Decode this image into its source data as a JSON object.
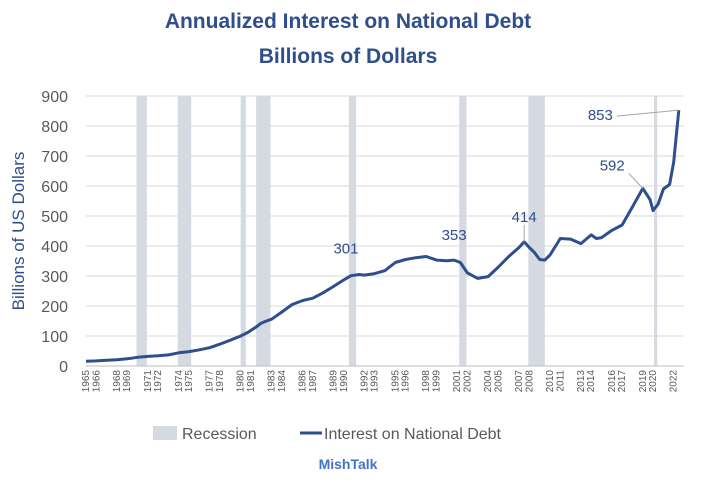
{
  "chart_data": {
    "type": "line",
    "title": "Annualized Interest on National Debt",
    "subtitle": "Billions of Dollars",
    "ylabel": "Billions of US Dollars",
    "xlabel": "",
    "ylim": [
      0,
      900
    ],
    "yticks": [
      0,
      100,
      200,
      300,
      400,
      500,
      600,
      700,
      800,
      900
    ],
    "xticks": [
      "1965",
      "1966",
      "1968",
      "1969",
      "1971",
      "1972",
      "1974",
      "1975",
      "1977",
      "1978",
      "1980",
      "1981",
      "1983",
      "1984",
      "1986",
      "1987",
      "1989",
      "1990",
      "1992",
      "1993",
      "1995",
      "1996",
      "1998",
      "1999",
      "2001",
      "2002",
      "2004",
      "2005",
      "2007",
      "2008",
      "2010",
      "2011",
      "2013",
      "2014",
      "2016",
      "2017",
      "2019",
      "2020",
      "2022"
    ],
    "grid": "horizontal",
    "legend_position": "bottom",
    "series": [
      {
        "name": "Interest on National Debt",
        "color": "#2f4e8c",
        "points": [
          [
            "1965.0",
            16
          ],
          [
            "1966.0",
            17
          ],
          [
            "1967.0",
            19
          ],
          [
            "1968.0",
            21
          ],
          [
            "1969.0",
            24
          ],
          [
            "1970.0",
            29
          ],
          [
            "1971.0",
            32
          ],
          [
            "1972.0",
            34
          ],
          [
            "1973.0",
            37
          ],
          [
            "1974.0",
            44
          ],
          [
            "1975.0",
            48
          ],
          [
            "1976.0",
            54
          ],
          [
            "1977.0",
            61
          ],
          [
            "1978.0",
            73
          ],
          [
            "1979.0",
            86
          ],
          [
            "1980.0",
            100
          ],
          [
            "1980.7",
            112
          ],
          [
            "1981.5",
            130
          ],
          [
            "1982.0",
            143
          ],
          [
            "1982.5",
            150
          ],
          [
            "1983.0",
            156
          ],
          [
            "1984.0",
            180
          ],
          [
            "1985.0",
            205
          ],
          [
            "1986.0",
            218
          ],
          [
            "1987.0",
            226
          ],
          [
            "1988.0",
            244
          ],
          [
            "1989.0",
            265
          ],
          [
            "1990.0",
            287
          ],
          [
            "1990.7",
            301
          ],
          [
            "1991.5",
            305
          ],
          [
            "1992.0",
            303
          ],
          [
            "1993.0",
            308
          ],
          [
            "1994.0",
            318
          ],
          [
            "1995.0",
            345
          ],
          [
            "1996.0",
            355
          ],
          [
            "1997.0",
            361
          ],
          [
            "1998.0",
            365
          ],
          [
            "1999.0",
            353
          ],
          [
            "2000.0",
            351
          ],
          [
            "2000.7",
            353
          ],
          [
            "2001.3",
            345
          ],
          [
            "2002.0",
            310
          ],
          [
            "2003.0",
            292
          ],
          [
            "2004.0",
            298
          ],
          [
            "2005.0",
            330
          ],
          [
            "2006.0",
            365
          ],
          [
            "2007.0",
            395
          ],
          [
            "2007.5",
            414
          ],
          [
            "2008.0",
            395
          ],
          [
            "2008.5",
            378
          ],
          [
            "2009.0",
            355
          ],
          [
            "2009.5",
            353
          ],
          [
            "2010.0",
            370
          ],
          [
            "2011.0",
            425
          ],
          [
            "2012.0",
            423
          ],
          [
            "2013.0",
            408
          ],
          [
            "2014.0",
            437
          ],
          [
            "2014.5",
            425
          ],
          [
            "2015.0",
            428
          ],
          [
            "2016.0",
            452
          ],
          [
            "2017.0",
            470
          ],
          [
            "2018.0",
            530
          ],
          [
            "2019.0",
            592
          ],
          [
            "2019.7",
            555
          ],
          [
            "2020.0",
            518
          ],
          [
            "2020.5",
            540
          ],
          [
            "2021.0",
            590
          ],
          [
            "2021.6",
            605
          ],
          [
            "2022.0",
            680
          ],
          [
            "2022.5",
            853
          ]
        ]
      }
    ],
    "recessions": [
      {
        "name": "Recession",
        "color": "#d4d9e2",
        "start": 1969.9,
        "end": 1970.9
      },
      {
        "name": "Recession",
        "color": "#d4d9e2",
        "start": 1973.9,
        "end": 1975.2
      },
      {
        "name": "Recession",
        "color": "#d4d9e2",
        "start": 1980.0,
        "end": 1980.5
      },
      {
        "name": "Recession",
        "color": "#d4d9e2",
        "start": 1981.5,
        "end": 1982.9
      },
      {
        "name": "Recession",
        "color": "#d4d9e2",
        "start": 1990.5,
        "end": 1991.2
      },
      {
        "name": "Recession",
        "color": "#d4d9e2",
        "start": 2001.2,
        "end": 2001.9
      },
      {
        "name": "Recession",
        "color": "#d4d9e2",
        "start": 2007.9,
        "end": 2009.5
      },
      {
        "name": "Recession",
        "color": "#d4d9e2",
        "start": 2020.1,
        "end": 2020.4
      }
    ],
    "annotations": [
      {
        "label": "301",
        "x": 1990.7,
        "y": 301
      },
      {
        "label": "353",
        "x": 2000.7,
        "y": 353
      },
      {
        "label": "414",
        "x": 2007.5,
        "y": 414
      },
      {
        "label": "592",
        "x": 2019.0,
        "y": 592
      },
      {
        "label": "853",
        "x": 2022.5,
        "y": 853
      }
    ],
    "legend": [
      {
        "label": "Recession",
        "kind": "band"
      },
      {
        "label": "Interest on National Debt",
        "kind": "line"
      }
    ]
  },
  "credit": "MishTalk",
  "colors": {
    "title": "#2f4e8c",
    "line": "#2f4e8c",
    "recession": "#d4d9e2",
    "axis_text": "#595959",
    "grid": "#d9d9d9",
    "credit": "#4472c4"
  }
}
